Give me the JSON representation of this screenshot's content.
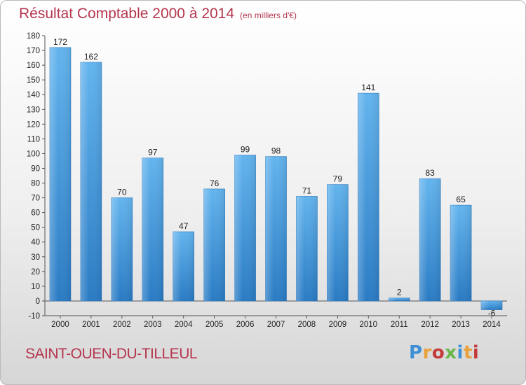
{
  "header": {
    "title": "Résultat Comptable 2000 à 2014",
    "subtitle": "(en milliers d'€)"
  },
  "footer": {
    "commune": "SAINT-OUEN-DU-TILLEUL",
    "logo_letters": [
      "P",
      "r",
      "o",
      "x",
      "i",
      "t",
      "i"
    ],
    "logo_colors": [
      "#3f8fd6",
      "#e9a13b",
      "#c43a3a",
      "#6bb64b",
      "#3f8fd6",
      "#e9a13b",
      "#c43a3a"
    ]
  },
  "chart_data": {
    "type": "bar",
    "title": "Résultat Comptable 2000 à 2014",
    "subtitle": "(en milliers d'€)",
    "categories": [
      "2000",
      "2001",
      "2002",
      "2003",
      "2004",
      "2005",
      "2006",
      "2007",
      "2008",
      "2009",
      "2010",
      "2011",
      "2012",
      "2013",
      "2014"
    ],
    "values": [
      172,
      162,
      70,
      97,
      47,
      76,
      99,
      98,
      71,
      79,
      141,
      2,
      83,
      65,
      -6
    ],
    "value_labels": [
      "172",
      "162",
      "70",
      "97",
      "47",
      "76",
      "99",
      "98",
      "71",
      "79",
      "141",
      "2",
      "83",
      "65",
      "-6"
    ],
    "ylim": [
      -10,
      180
    ],
    "yticks": [
      -10,
      0,
      10,
      20,
      30,
      40,
      50,
      60,
      70,
      80,
      90,
      100,
      110,
      120,
      130,
      140,
      150,
      160,
      170,
      180
    ],
    "grid": false,
    "legend": "none",
    "bar_color": "#3b8fd9",
    "bar_color_light": "#62b1ec",
    "bar_color_dark": "#2a78bf"
  }
}
